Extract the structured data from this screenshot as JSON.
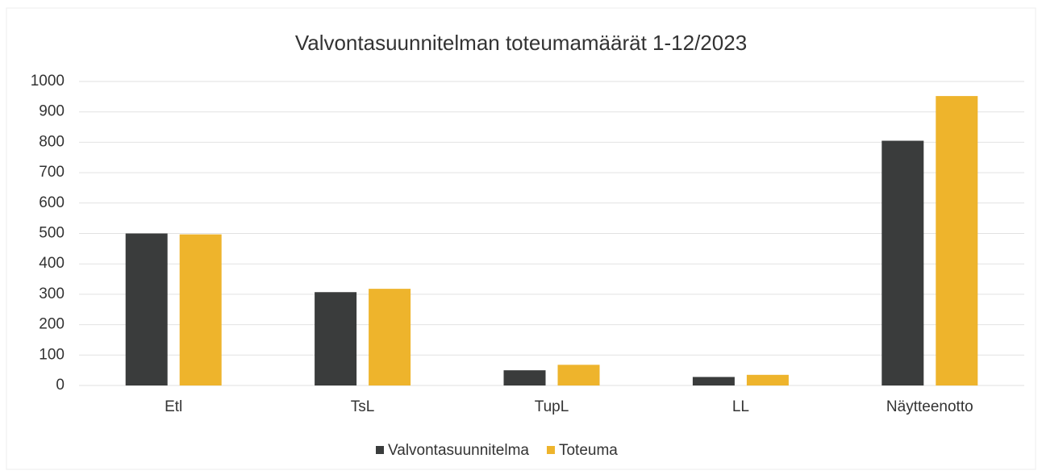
{
  "chart_data": {
    "type": "bar",
    "title": "Valvontasuunnitelman toteumamäärät 1-12/2023",
    "categories": [
      "Etl",
      "TsL",
      "TupL",
      "LL",
      "Näytteenotto"
    ],
    "series": [
      {
        "name": "Valvontasuunnitelma",
        "color": "#3a3c3c",
        "values": [
          500,
          307,
          50,
          28,
          805
        ]
      },
      {
        "name": "Toteuma",
        "color": "#eeb42c",
        "values": [
          497,
          318,
          68,
          35,
          952
        ]
      }
    ],
    "ylim": [
      0,
      1000
    ],
    "yticks": [
      0,
      100,
      200,
      300,
      400,
      500,
      600,
      700,
      800,
      900,
      1000
    ],
    "grid": true,
    "legend": "bottom"
  }
}
